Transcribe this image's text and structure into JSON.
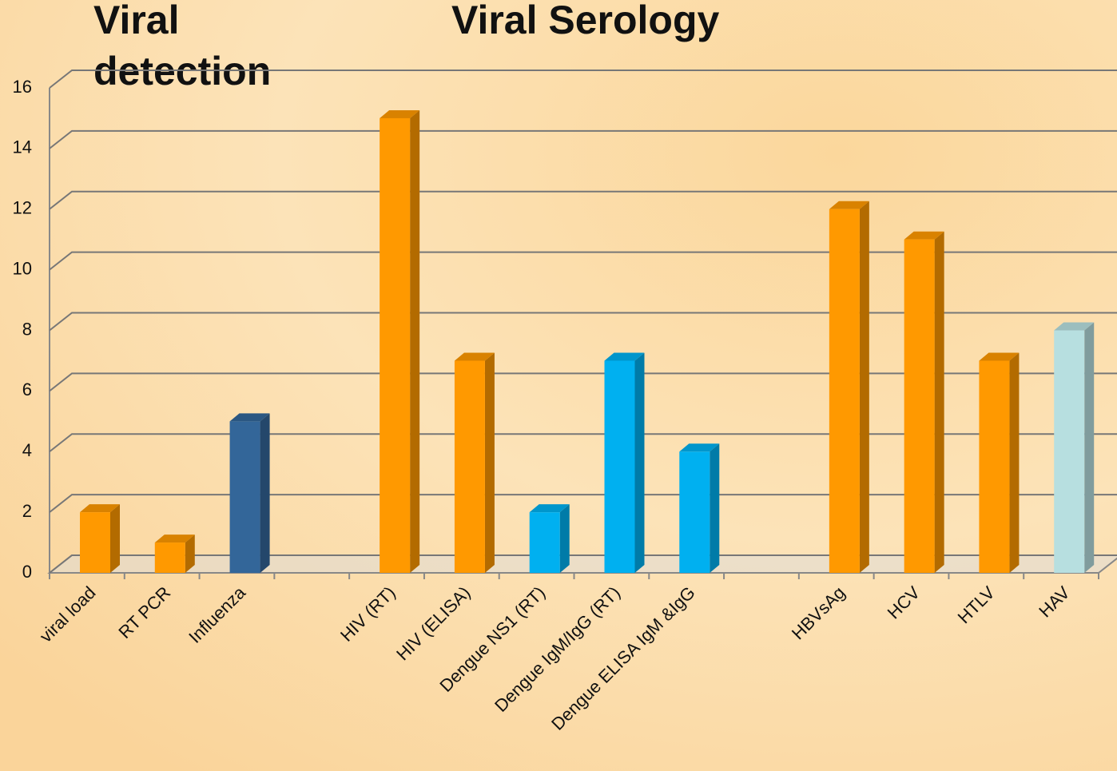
{
  "chart_data": {
    "type": "bar3d",
    "annotations": [
      "Viral",
      "detection",
      "Viral Serology"
    ],
    "categories": [
      "viral load",
      "RT PCR",
      "Influenza",
      null,
      "HIV (RT)",
      "HIV (ELISA)",
      "Dengue NS1 (RT)",
      "Dengue IgM/IgG (RT)",
      "Dengue ELISA IgM &IgG",
      null,
      "HBVsAg",
      "HCV",
      "HTLV",
      "HAV"
    ],
    "values": [
      2,
      1,
      5,
      null,
      15,
      7,
      2,
      7,
      4,
      null,
      12,
      11,
      7,
      8
    ],
    "colors": [
      "#ff9900",
      "#ff9900",
      "#336699",
      null,
      "#ff9900",
      "#ff9900",
      "#00b0f0",
      "#00b0f0",
      "#00b0f0",
      null,
      "#ff9900",
      "#ff9900",
      "#ff9900",
      "#b7dfe0"
    ],
    "ylim": [
      0,
      16
    ],
    "yticks": [
      0,
      2,
      4,
      6,
      8,
      10,
      12,
      14,
      16
    ],
    "grid": true
  }
}
